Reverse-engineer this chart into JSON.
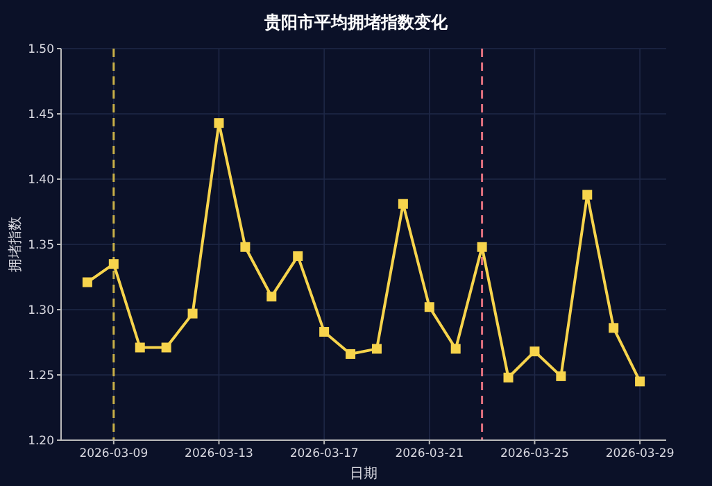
{
  "chart_data": {
    "type": "line",
    "title": "贵阳市平均拥堵指数变化",
    "xlabel": "日期",
    "ylabel": "拥堵指数",
    "x": [
      "2026-03-08",
      "2026-03-09",
      "2026-03-10",
      "2026-03-11",
      "2026-03-12",
      "2026-03-13",
      "2026-03-14",
      "2026-03-15",
      "2026-03-16",
      "2026-03-17",
      "2026-03-18",
      "2026-03-19",
      "2026-03-20",
      "2026-03-21",
      "2026-03-22",
      "2026-03-23",
      "2026-03-24",
      "2026-03-25",
      "2026-03-26",
      "2026-03-27",
      "2026-03-28",
      "2026-03-29"
    ],
    "series": [
      {
        "color": "#f7d44c",
        "values": [
          1.321,
          1.335,
          1.271,
          1.271,
          1.297,
          1.443,
          1.348,
          1.31,
          1.341,
          1.283,
          1.266,
          1.27,
          1.381,
          1.302,
          1.27,
          1.348,
          1.248,
          1.268,
          1.249,
          1.388,
          1.286,
          1.245
        ]
      }
    ],
    "xlim": [
      "2026-03-07",
      "2026-03-30"
    ],
    "ylim": [
      1.2,
      1.5
    ],
    "xticks": [
      "2026-03-09",
      "2026-03-13",
      "2026-03-17",
      "2026-03-21",
      "2026-03-25",
      "2026-03-29"
    ],
    "yticks": [
      {
        "value": 1.2,
        "label": "1.20"
      },
      {
        "value": 1.25,
        "label": "1.25"
      },
      {
        "value": 1.3,
        "label": "1.30"
      },
      {
        "value": 1.35,
        "label": "1.35"
      },
      {
        "value": 1.4,
        "label": "1.40"
      },
      {
        "value": 1.45,
        "label": "1.45"
      },
      {
        "value": 1.5,
        "label": "1.50"
      }
    ],
    "ref_lines": [
      {
        "axis": "x",
        "value": "2026-03-09",
        "color": "#c9b048",
        "line_style": "dashed"
      },
      {
        "axis": "x",
        "value": "2026-03-23",
        "color": "#e0707e",
        "line_style": "dashed"
      }
    ],
    "grid": true,
    "marker": "square",
    "line_style": "solid"
  }
}
